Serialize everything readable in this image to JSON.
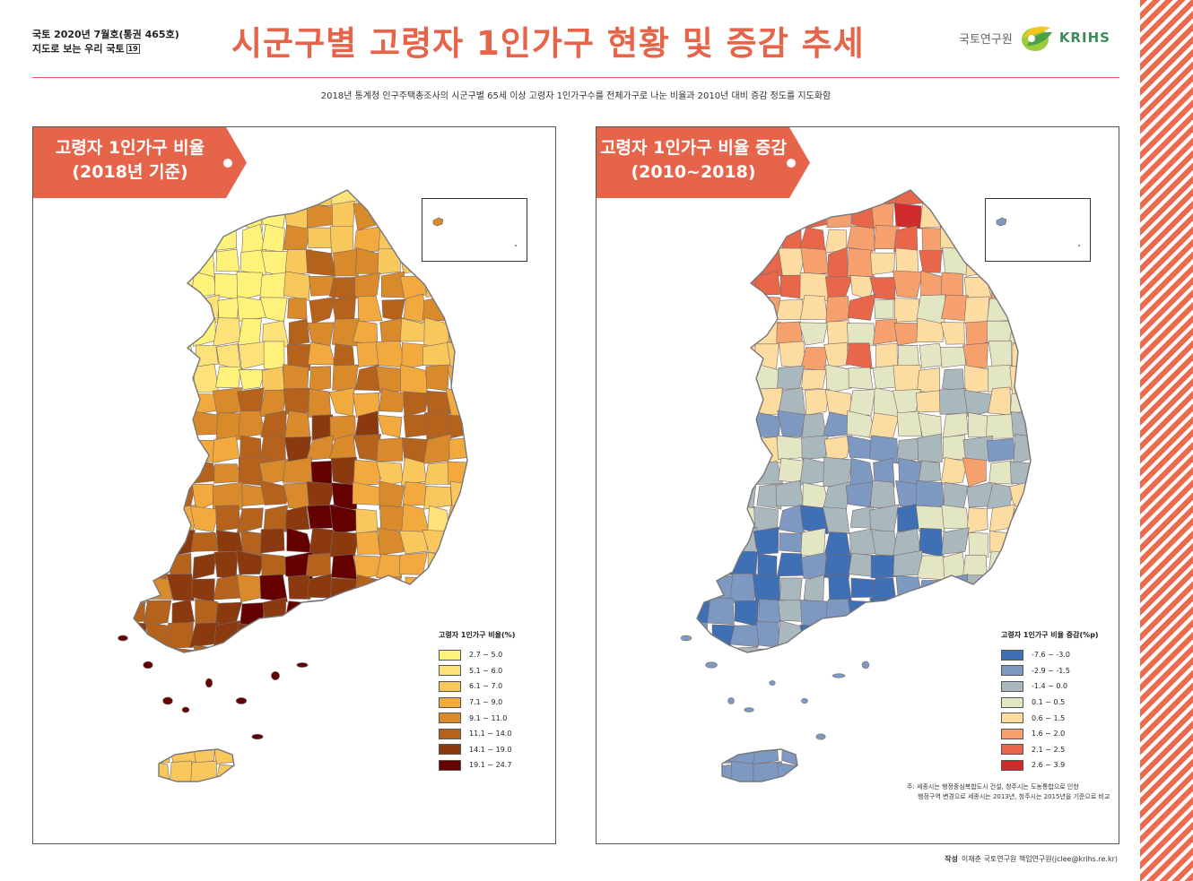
{
  "header": {
    "issue_line1": "국토 2020년 7월호(통권 465호)",
    "issue_line2": "지도로 보는 우리 국토",
    "issue_number": "19",
    "title": "시군구별 고령자 1인가구 현황 및 증감 추세",
    "brand_kr": "국토연구원",
    "brand_en": "KRIHS",
    "subtitle": "2018년 통계청 인구주택총조사의 시군구별 65세 이상 고령자 1인가구수를 전체가구로 나눈 비율과 2010년 대비 증감 정도를 지도화함"
  },
  "colors": {
    "accent": "#e5644a",
    "stripe": "#ec6b4f",
    "brand_green": "#3e8a5a"
  },
  "panels": [
    {
      "banner_line1": "고령자 1인가구 비율",
      "banner_line2": "(2018년 기준)",
      "legend_title": "고령자 1인가구 비율(%)",
      "legend": [
        {
          "label": "2.7 ~ 5.0",
          "color": "#fff27a"
        },
        {
          "label": "5.1 ~ 6.0",
          "color": "#fde27a"
        },
        {
          "label": "6.1 ~ 7.0",
          "color": "#f9c85c"
        },
        {
          "label": "7.1 ~ 9.0",
          "color": "#f2a93e"
        },
        {
          "label": "9.1 ~ 11.0",
          "color": "#d98a2b"
        },
        {
          "label": "11.1 ~ 14.0",
          "color": "#b5621c"
        },
        {
          "label": "14.1 ~ 19.0",
          "color": "#8a3a0e"
        },
        {
          "label": "19.1 ~ 24.7",
          "color": "#640000"
        }
      ]
    },
    {
      "banner_line1": "고령자 1인가구 비율 증감",
      "banner_line2": "(2010~2018)",
      "legend_title": "고령자 1인가구 비율 증감(%p)",
      "legend": [
        {
          "label": "-7.6 ~ -3.0",
          "color": "#3f6fb5"
        },
        {
          "label": "-2.9 ~ -1.5",
          "color": "#7d98c1"
        },
        {
          "label": "-1.4 ~ 0.0",
          "color": "#a9b8bd"
        },
        {
          "label": "0.1 ~ 0.5",
          "color": "#e3e6c3"
        },
        {
          "label": "0.6 ~ 1.5",
          "color": "#fcdca0"
        },
        {
          "label": "1.6 ~ 2.0",
          "color": "#f5a06d"
        },
        {
          "label": "2.1 ~ 2.5",
          "color": "#e8664a"
        },
        {
          "label": "2.6 ~ 3.9",
          "color": "#d02b2b"
        }
      ],
      "note_line1": "주: 세종시는 행정중심복합도시 건설, 청주시는 도농통합으로 인한",
      "note_line2": "행정구역 변경으로 세종시는 2013년, 청주시는 2015년을 기준으로 비교"
    }
  ],
  "author": {
    "label": "작성",
    "text": "이재춘 국토연구원 책임연구원(jclee@krihs.re.kr)"
  }
}
